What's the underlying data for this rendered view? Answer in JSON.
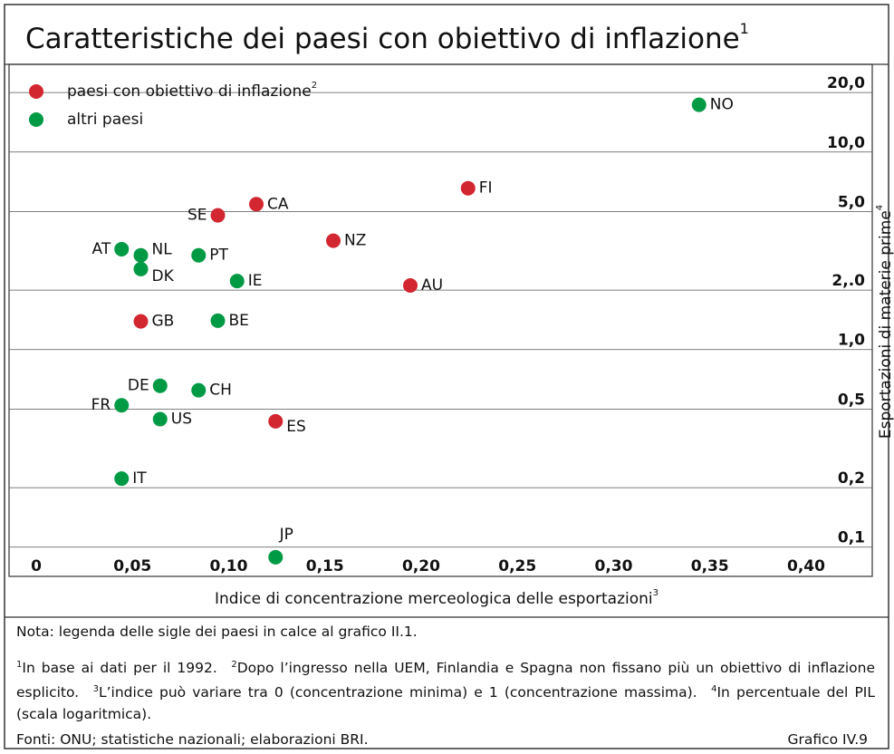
{
  "chart_data": {
    "type": "scatter",
    "title": "Caratteristiche dei paesi con obiettivo di inflazione",
    "title_sup": "1",
    "xlabel": "Indice di concentrazione merceologica delle esportazioni",
    "xlabel_sup": "3",
    "ylabel": "Esportazioni di materie prime",
    "ylabel_sup": "4",
    "log_y": true,
    "grid": true,
    "legend": "upper left",
    "xlim": [
      0,
      0.44
    ],
    "ylim": [
      0.064,
      25
    ],
    "xticks": [
      0,
      {
        "value": 0.05,
        "label": "0,05"
      },
      {
        "value": 0.1,
        "label": "0,10"
      },
      {
        "value": 0.15,
        "label": "0,15"
      },
      {
        "value": 0.2,
        "label": "0,20"
      },
      {
        "value": 0.25,
        "label": "0,25"
      },
      {
        "value": 0.3,
        "label": "0,30"
      },
      {
        "value": 0.35,
        "label": "0,35"
      },
      {
        "value": 0.4,
        "label": "0,40"
      }
    ],
    "yticks": [
      {
        "value": 0.1,
        "label": "0,1"
      },
      {
        "value": 0.2,
        "label": "0,2"
      },
      {
        "value": 0.5,
        "label": "0,5"
      },
      {
        "value": 1,
        "label": "1,0"
      },
      {
        "value": 2,
        "label": "2,.0"
      },
      {
        "value": 5,
        "label": "5,0"
      },
      {
        "value": 10,
        "label": "10,0"
      },
      {
        "value": 20,
        "label": "20,0"
      }
    ],
    "series": [
      {
        "name": "paesi con obiettivo di inflazione",
        "name_sup": "2",
        "color": "#d22630",
        "labels": [
          "FI",
          "CA",
          "SE",
          "NZ",
          "AU",
          "GB",
          "ES"
        ],
        "x": [
          0.23,
          0.12,
          0.1,
          0.16,
          0.2,
          0.06,
          0.13
        ],
        "values": [
          5.9,
          4.9,
          4.3,
          3.2,
          1.9,
          1.25,
          0.39
        ]
      },
      {
        "name": "altri paesi",
        "color": "#009a44",
        "labels": [
          "NO",
          "AT",
          "NL",
          "DK",
          "PT",
          "IE",
          "BE",
          "DE",
          "CH",
          "FR",
          "US",
          "IT",
          "JP"
        ],
        "x": [
          0.35,
          0.05,
          0.06,
          0.06,
          0.09,
          0.11,
          0.1,
          0.07,
          0.09,
          0.05,
          0.07,
          0.05,
          0.13
        ],
        "values": [
          15.6,
          2.9,
          2.7,
          2.3,
          2.7,
          2.0,
          1.26,
          0.59,
          0.56,
          0.47,
          0.4,
          0.2,
          0.08
        ]
      }
    ]
  },
  "notes": {
    "nota": "Nota: legenda delle sigle dei paesi in calce al grafico II.1.",
    "footnotes": [
      {
        "sup": "1",
        "text": "In base ai dati per il 1992."
      },
      {
        "sup": "2",
        "text": "Dopo l’ingresso nella UEM, Finlandia e Spagna non fissano più un obiettivo di inflazione esplicito."
      },
      {
        "sup": "3",
        "text": "L’indice può variare tra 0 (concentrazione minima) e 1 (concentrazione massima)."
      },
      {
        "sup": "4",
        "text": "In percentuale del PIL (scala logaritmica)."
      }
    ],
    "source": "Fonti: ONU; statistiche nazionali; elaborazioni BRI.",
    "figure": "Grafico IV.9"
  }
}
